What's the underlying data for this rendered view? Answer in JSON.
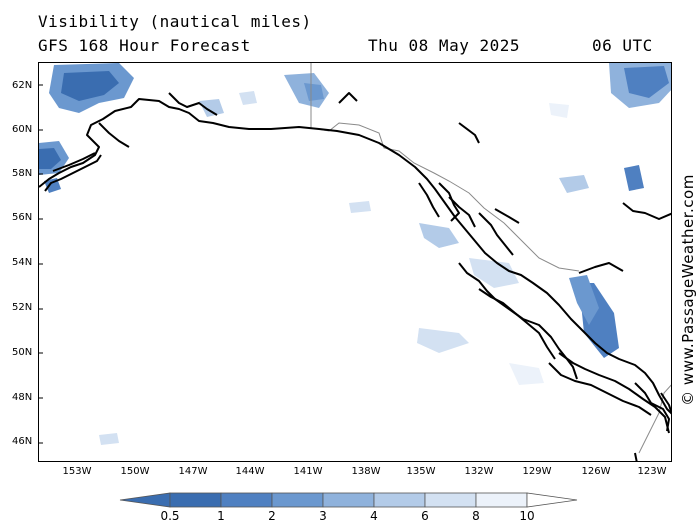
{
  "header": {
    "title": "Visibility (nautical miles)",
    "subtitle": "GFS 168 Hour Forecast",
    "date": "Thu 08 May 2025",
    "time": "06 UTC"
  },
  "credit": "© www.PassageWeather.com",
  "axes": {
    "lat_labels": [
      "62N",
      "60N",
      "58N",
      "56N",
      "54N",
      "52N",
      "50N",
      "48N",
      "46N"
    ],
    "lon_labels": [
      "153W",
      "150W",
      "147W",
      "144W",
      "141W",
      "138W",
      "135W",
      "132W",
      "129W",
      "126W",
      "123W"
    ]
  },
  "legend": {
    "labels": [
      "0.5",
      "1",
      "2",
      "3",
      "4",
      "6",
      "8",
      "10"
    ],
    "colors": [
      "#3a6db0",
      "#4f80c1",
      "#6b98cf",
      "#8fb2dc",
      "#b3cbe8",
      "#d3e1f2",
      "#ecf2fa",
      "#ffffff"
    ]
  },
  "colors": {
    "coast": "#000000",
    "border": "#8a8a8a"
  }
}
